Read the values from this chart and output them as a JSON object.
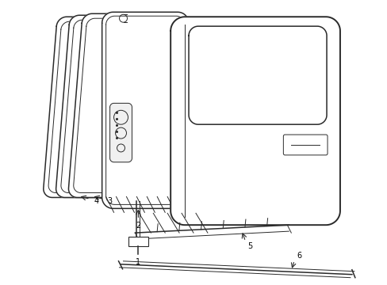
{
  "background_color": "#ffffff",
  "line_color": "#2a2a2a",
  "figsize": [
    4.89,
    3.6
  ],
  "dpi": 100,
  "labels": [
    "1",
    "2",
    "3",
    "4",
    "5",
    "6"
  ]
}
